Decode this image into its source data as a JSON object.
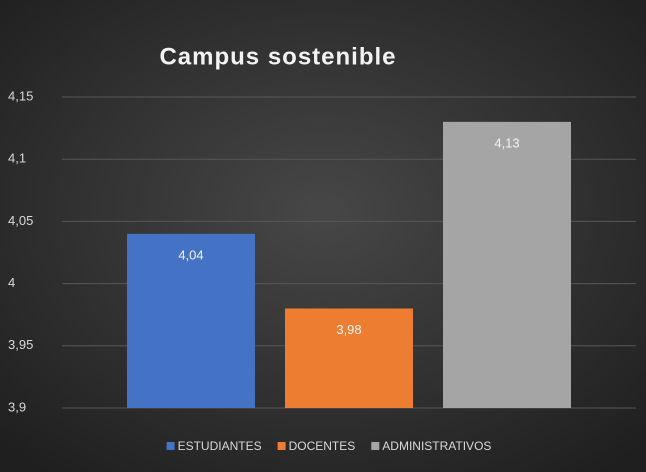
{
  "chart_data": {
    "type": "bar",
    "title": "Campus sostenible",
    "categories": [
      null
    ],
    "series": [
      {
        "name": "ESTUDIANTES",
        "color": "#4472c4",
        "values": [
          4.04
        ],
        "value_labels": [
          "4,04"
        ]
      },
      {
        "name": "DOCENTES",
        "color": "#ed7d31",
        "values": [
          3.98
        ],
        "value_labels": [
          "3,98"
        ]
      },
      {
        "name": "ADMINISTRATIVOS",
        "color": "#a5a5a5",
        "values": [
          4.13
        ],
        "value_labels": [
          "4,13"
        ]
      }
    ],
    "ylim": [
      3.9,
      4.15
    ],
    "yticks": [
      {
        "value": 3.9,
        "label": "3,9"
      },
      {
        "value": 3.95,
        "label": "3,95"
      },
      4,
      {
        "value": 4.05,
        "label": "4,05"
      },
      {
        "value": 4.1,
        "label": "4,1"
      },
      {
        "value": 4.15,
        "label": "4,15"
      }
    ],
    "grid": true,
    "legend": "bottom"
  }
}
